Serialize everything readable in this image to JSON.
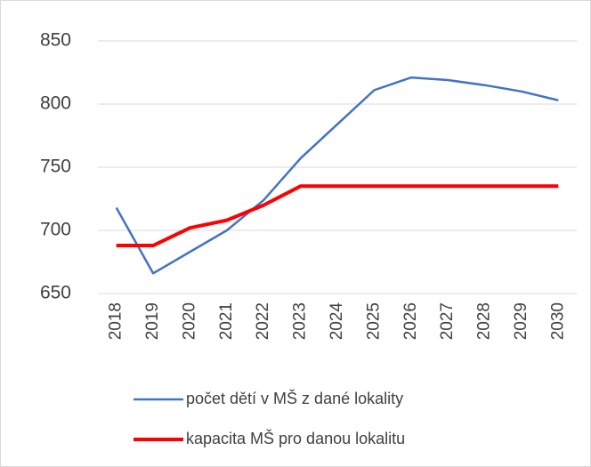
{
  "chart_data": {
    "type": "line",
    "categories": [
      "2018",
      "2019",
      "2020",
      "2021",
      "2022",
      "2023",
      "2024",
      "2025",
      "2026",
      "2027",
      "2028",
      "2029",
      "2030"
    ],
    "series": [
      {
        "name": "počet dětí v MŠ z dané lokality",
        "color": "#4472c4",
        "values": [
          718,
          666,
          683,
          700,
          724,
          757,
          784,
          811,
          821,
          819,
          815,
          810,
          803
        ]
      },
      {
        "name": "kapacita MŠ pro danou lokalitu",
        "color": "#ff0000",
        "values": [
          688,
          688,
          702,
          708,
          720,
          735,
          735,
          735,
          735,
          735,
          735,
          735,
          735
        ]
      }
    ],
    "ylim": [
      650,
      850
    ],
    "yticks": [
      650,
      700,
      750,
      800,
      850
    ],
    "grid": true,
    "legend": "bottom"
  }
}
